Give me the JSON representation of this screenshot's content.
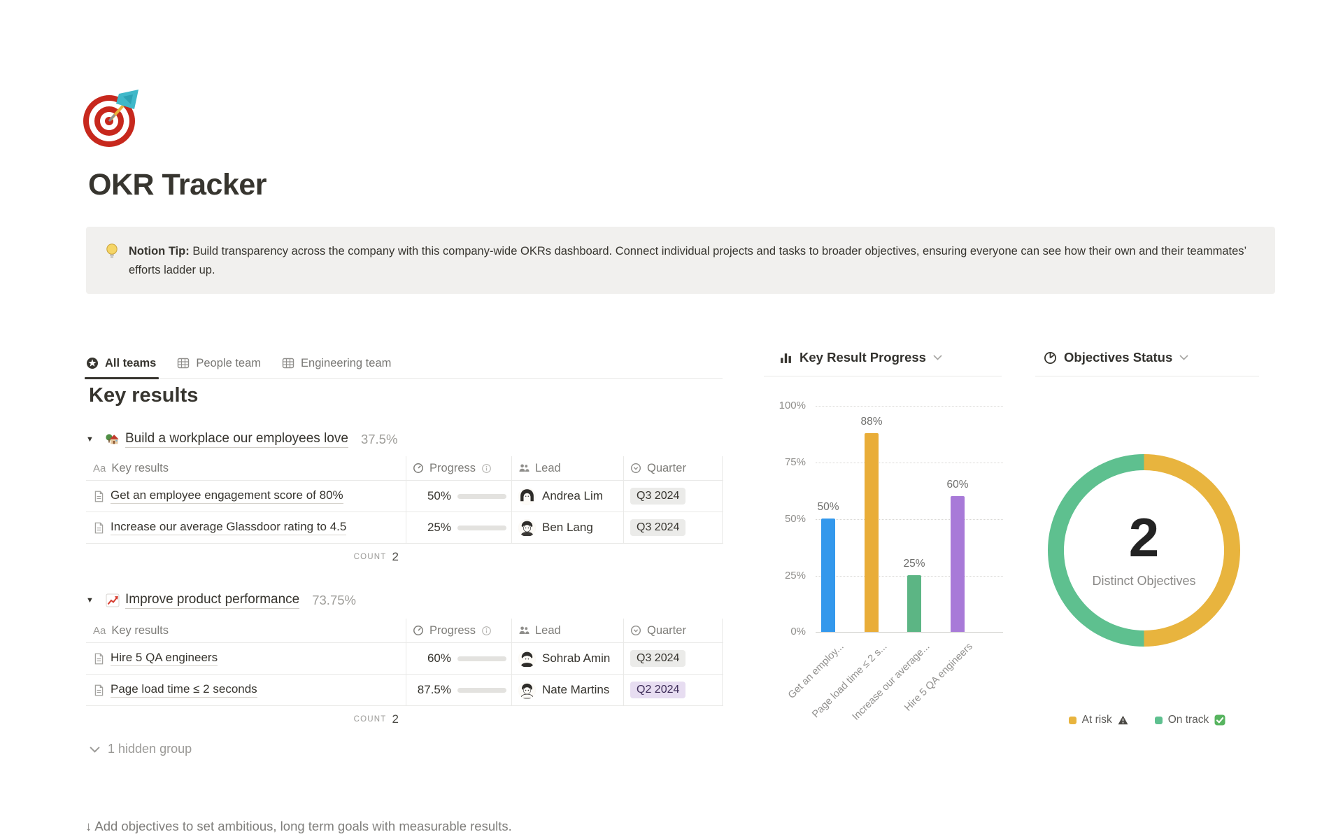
{
  "page": {
    "title": "OKR Tracker",
    "icon": "dartboard"
  },
  "callout": {
    "icon": "light-bulb",
    "bold": "Notion Tip:",
    "text": " Build transparency across the company with this company-wide OKRs dashboard. Connect individual projects and tasks to broader objectives, ensuring everyone can see how their own and their teammates’ efforts ladder up."
  },
  "tabs": [
    {
      "label": "All teams",
      "icon": "star-circle",
      "active": true
    },
    {
      "label": "People team",
      "icon": "table-grid",
      "active": false
    },
    {
      "label": "Engineering team",
      "icon": "table-grid",
      "active": false
    }
  ],
  "section_title": "Key results",
  "table_columns": {
    "name_icon_label": "Aa",
    "name": "Key results",
    "progress": "Progress",
    "lead": "Lead",
    "quarter": "Quarter"
  },
  "groups": [
    {
      "toggle": "▼",
      "icon": "house-with-garden",
      "title": "Build a workplace our employees love",
      "percent": "37.5%",
      "rows": [
        {
          "name": "Get an employee engagement score of 80%",
          "progress_label": "50%",
          "progress_value": 50,
          "lead": "Andrea Lim",
          "quarter": "Q3 2024",
          "quarter_color": "gray"
        },
        {
          "name": "Increase our average Glassdoor rating to 4.5",
          "progress_label": "25%",
          "progress_value": 25,
          "lead": "Ben Lang",
          "quarter": "Q3 2024",
          "quarter_color": "gray"
        }
      ],
      "count_label": "COUNT",
      "count_value": "2"
    },
    {
      "toggle": "▼",
      "icon": "chart-increasing",
      "title": "Improve product performance",
      "percent": "73.75%",
      "rows": [
        {
          "name": "Hire 5 QA engineers",
          "progress_label": "60%",
          "progress_value": 60,
          "lead": "Sohrab Amin",
          "quarter": "Q3 2024",
          "quarter_color": "gray"
        },
        {
          "name": "Page load time ≤ 2 seconds",
          "progress_label": "87.5%",
          "progress_value": 87.5,
          "lead": "Nate Martins",
          "quarter": "Q2 2024",
          "quarter_color": "purple"
        }
      ],
      "count_label": "COUNT",
      "count_value": "2"
    }
  ],
  "hidden_group_label": "1 hidden group",
  "footer_note": "↓ Add objectives to set ambitious, long term goals with measurable results.",
  "chart_data": [
    {
      "type": "bar",
      "title": "Key Result Progress",
      "categories": [
        "Get an employ...",
        "Page load time ≤ 2 s...",
        "Increase our average...",
        "Hire 5 QA engineers"
      ],
      "values": [
        50,
        88,
        25,
        60
      ],
      "value_labels": [
        "50%",
        "88%",
        "25%",
        "60%"
      ],
      "colors": [
        "#3398ec",
        "#e9ad38",
        "#5cb584",
        "#a87ad8"
      ],
      "ylabel": "",
      "xlabel": "",
      "ylim": [
        0,
        100
      ],
      "yticks": [
        "100%",
        "75%",
        "50%",
        "25%",
        "0%"
      ],
      "grid": "dotted-horizontal",
      "legend_position": "none"
    },
    {
      "type": "pie",
      "title": "Objectives Status",
      "center_value": "2",
      "center_label": "Distinct Objectives",
      "slices": [
        {
          "label": "At risk",
          "value": 1,
          "color": "#e8b43e",
          "status_icon": "warning"
        },
        {
          "label": "On track",
          "value": 1,
          "color": "#5ec08f",
          "status_icon": "check"
        }
      ],
      "legend_position": "bottom"
    }
  ]
}
